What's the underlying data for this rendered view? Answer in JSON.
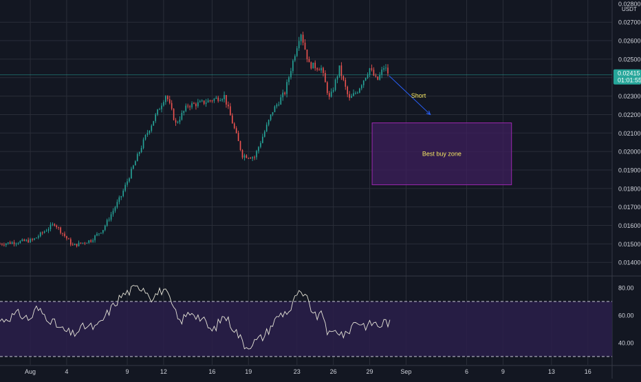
{
  "chart_data": [
    {
      "type": "candlestick",
      "quote_currency": "USDT",
      "y_ticks": [
        "0.02700",
        "0.02600",
        "0.02500",
        "0.02400",
        "0.02300",
        "0.02200",
        "0.02100",
        "0.02000",
        "0.01900",
        "0.01800",
        "0.01700",
        "0.01600",
        "0.01500",
        "0.01400"
      ],
      "ylim": [
        0.0133,
        0.0282
      ],
      "top_tick_partial": "0.02800",
      "x_ticks": [
        "Aug",
        "4",
        "9",
        "12",
        "16",
        "19",
        "23",
        "26",
        "29",
        "Sep",
        "6",
        "9",
        "13",
        "16"
      ],
      "x_tick_days": [
        1,
        4,
        9,
        12,
        16,
        19,
        23,
        26,
        29,
        32,
        37,
        40,
        44,
        47
      ],
      "xlim_days": [
        -1.5,
        49
      ],
      "current_price": "0.02415",
      "current_price_value": 0.02415,
      "countdown": "01:01:55",
      "key_points": [
        {
          "day": -1.5,
          "price": 0.015
        },
        {
          "day": 1.2,
          "price": 0.0152
        },
        {
          "day": 3.0,
          "price": 0.0161
        },
        {
          "day": 4.5,
          "price": 0.0149
        },
        {
          "day": 6.0,
          "price": 0.0152
        },
        {
          "day": 7.0,
          "price": 0.0158
        },
        {
          "day": 8.5,
          "price": 0.0176
        },
        {
          "day": 10.5,
          "price": 0.0208
        },
        {
          "day": 12.2,
          "price": 0.0231
        },
        {
          "day": 13.0,
          "price": 0.0215
        },
        {
          "day": 14.0,
          "price": 0.0225
        },
        {
          "day": 15.0,
          "price": 0.0226
        },
        {
          "day": 17.0,
          "price": 0.023
        },
        {
          "day": 18.5,
          "price": 0.0198
        },
        {
          "day": 19.5,
          "price": 0.0197
        },
        {
          "day": 21.0,
          "price": 0.0222
        },
        {
          "day": 22.0,
          "price": 0.0232
        },
        {
          "day": 23.3,
          "price": 0.0265
        },
        {
          "day": 24.0,
          "price": 0.0247
        },
        {
          "day": 25.0,
          "price": 0.0245
        },
        {
          "day": 25.7,
          "price": 0.0228
        },
        {
          "day": 26.5,
          "price": 0.0245
        },
        {
          "day": 27.3,
          "price": 0.0228
        },
        {
          "day": 28.0,
          "price": 0.0233
        },
        {
          "day": 29.0,
          "price": 0.0245
        },
        {
          "day": 29.6,
          "price": 0.0238
        },
        {
          "day": 30.2,
          "price": 0.0246
        },
        {
          "day": 30.6,
          "price": 0.02415
        }
      ],
      "annotations": {
        "short_label": "Short",
        "arrow": {
          "from_day": 30.6,
          "from_price": 0.0241,
          "to_day": 34.0,
          "to_price": 0.022
        },
        "buy_zone": {
          "label": "Best buy zone",
          "day_start": 29.2,
          "day_end": 40.7,
          "price_low": 0.0182,
          "price_high": 0.02155
        }
      },
      "colors": {
        "background": "#131722",
        "up": "#26a69a",
        "down": "#ef5350",
        "grid": "#2a2e39",
        "text": "#d1d4dc",
        "price_badge": "#26a69a",
        "zone_border": "#9c27b0",
        "zone_fill": "#3d1f5c",
        "annotation_text": "#f5e663",
        "arrow": "#2962ff"
      }
    },
    {
      "type": "line",
      "indicator": "oscillator",
      "y_ticks": [
        "80.00",
        "60.00",
        "40.00"
      ],
      "ylim": [
        24,
        88
      ],
      "band": [
        70,
        30
      ],
      "key_points": [
        {
          "day": -1.5,
          "value": 56
        },
        {
          "day": 0.0,
          "value": 61
        },
        {
          "day": 1.0,
          "value": 57
        },
        {
          "day": 1.5,
          "value": 65
        },
        {
          "day": 2.5,
          "value": 58
        },
        {
          "day": 3.5,
          "value": 50
        },
        {
          "day": 4.5,
          "value": 46
        },
        {
          "day": 5.5,
          "value": 52
        },
        {
          "day": 6.5,
          "value": 51
        },
        {
          "day": 7.5,
          "value": 63
        },
        {
          "day": 8.5,
          "value": 74
        },
        {
          "day": 9.5,
          "value": 79
        },
        {
          "day": 10.3,
          "value": 81
        },
        {
          "day": 11.0,
          "value": 73
        },
        {
          "day": 12.0,
          "value": 79
        },
        {
          "day": 12.5,
          "value": 71
        },
        {
          "day": 13.3,
          "value": 55
        },
        {
          "day": 14.3,
          "value": 63
        },
        {
          "day": 15.3,
          "value": 56
        },
        {
          "day": 16.0,
          "value": 48
        },
        {
          "day": 17.0,
          "value": 60
        },
        {
          "day": 18.0,
          "value": 48
        },
        {
          "day": 18.8,
          "value": 37
        },
        {
          "day": 20.3,
          "value": 45
        },
        {
          "day": 21.5,
          "value": 60
        },
        {
          "day": 22.5,
          "value": 64
        },
        {
          "day": 23.0,
          "value": 76
        },
        {
          "day": 23.8,
          "value": 72
        },
        {
          "day": 24.5,
          "value": 59
        },
        {
          "day": 25.2,
          "value": 60
        },
        {
          "day": 25.6,
          "value": 45
        },
        {
          "day": 26.3,
          "value": 49
        },
        {
          "day": 27.0,
          "value": 45
        },
        {
          "day": 27.8,
          "value": 56
        },
        {
          "day": 28.8,
          "value": 52
        },
        {
          "day": 29.3,
          "value": 55
        },
        {
          "day": 29.8,
          "value": 52
        },
        {
          "day": 30.3,
          "value": 56
        },
        {
          "day": 30.8,
          "value": 53
        }
      ],
      "colors": {
        "line": "#e8e6d9",
        "band_fill": "#2a1f4a",
        "band_line": "#c9c9d6"
      }
    }
  ]
}
